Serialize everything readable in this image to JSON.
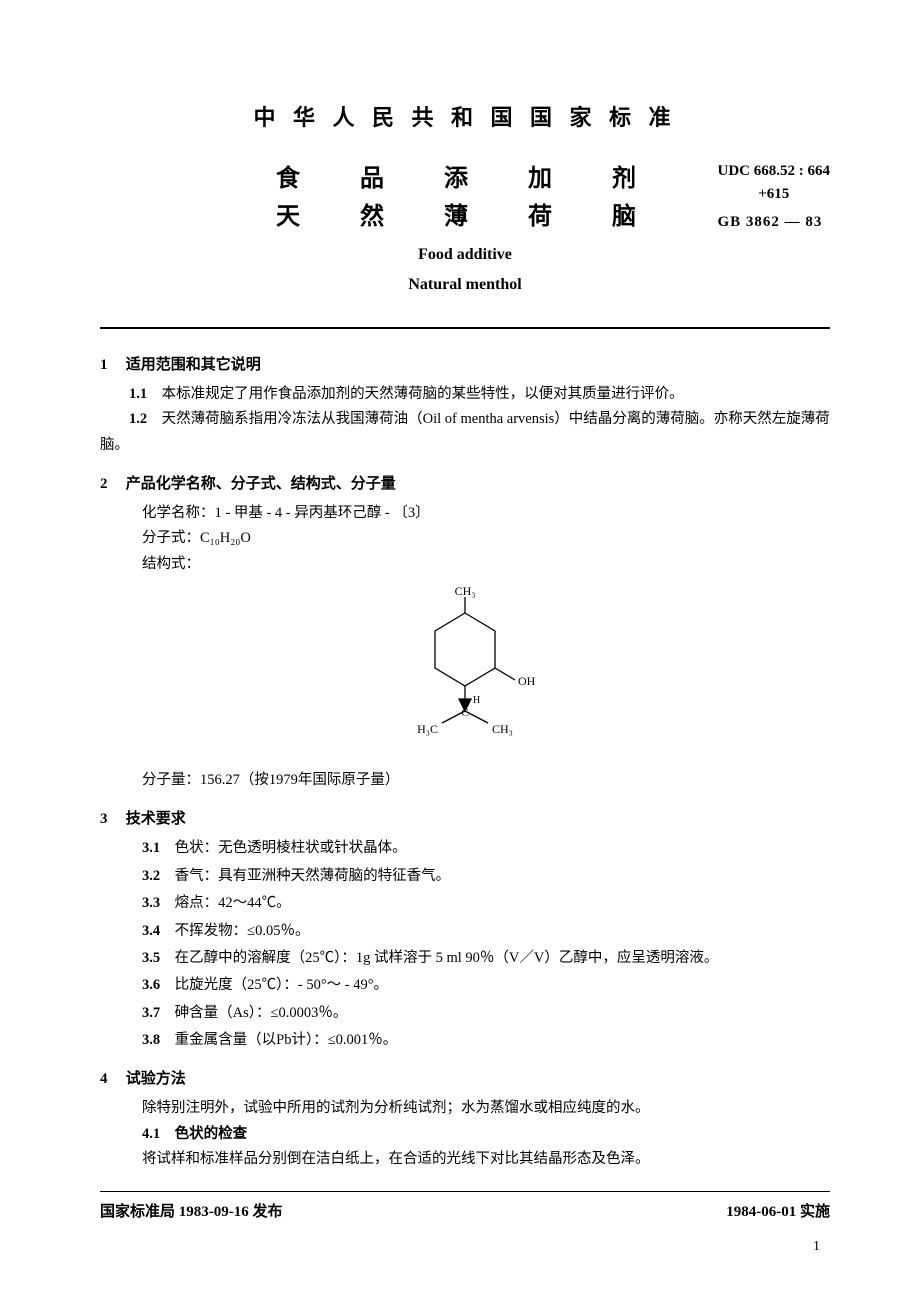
{
  "header": {
    "org": "中 华 人 民 共 和 国 国 家 标 准",
    "title_cn_1": "食　品　添　加　剂",
    "title_cn_2": "天　然　薄　荷　脑",
    "title_en_1": "Food additive",
    "title_en_2": "Natural menthol",
    "udc_line1": "UDC 668.52 : 664",
    "udc_line2": "+615",
    "gb": "GB 3862 — 83"
  },
  "s1": {
    "num": "1",
    "title": "适用范围和其它说明",
    "p1_num": "1.1",
    "p1": "本标准规定了用作食品添加剂的天然薄荷脑的某些特性，以便对其质量进行评价。",
    "p2_num": "1.2",
    "p2": "天然薄荷脑系指用冷冻法从我国薄荷油（Oil of mentha arvensis）中结晶分离的薄荷脑。亦称天然左旋薄荷脑。"
  },
  "s2": {
    "num": "2",
    "title": "产品化学名称、分子式、结构式、分子量",
    "chem_label": "化学名称：",
    "chem_name": "1 - 甲基 - 4 - 异丙基环己醇 - 〔3〕",
    "formula_label": "分子式：",
    "formula": "C₁₀H₂₀O",
    "struct_label": "结构式：",
    "mw_label": "分子量：",
    "mw": "156.27（按1979年国际原子量）",
    "svg": {
      "ch3_top": "CH₃",
      "oh": "OH",
      "c": "C",
      "h": "H",
      "h3c": "H₃C",
      "ch3_r": "CH₃"
    }
  },
  "s3": {
    "num": "3",
    "title": "技术要求",
    "items": [
      {
        "n": "3.1",
        "k": "色状：",
        "v": "无色透明棱柱状或针状晶体。"
      },
      {
        "n": "3.2",
        "k": "香气：",
        "v": "具有亚洲种天然薄荷脑的特征香气。"
      },
      {
        "n": "3.3",
        "k": "熔点：",
        "v": "42～44℃。"
      },
      {
        "n": "3.4",
        "k": "不挥发物：",
        "v": "≤0.05％。"
      },
      {
        "n": "3.5",
        "k": "在乙醇中的溶解度（25℃）：",
        "v": "1g 试样溶于 5 ml 90％（V／V）乙醇中，应呈透明溶液。"
      },
      {
        "n": "3.6",
        "k": "比旋光度（25℃）：",
        "v": "- 50°～ - 49°。"
      },
      {
        "n": "3.7",
        "k": "砷含量（As）：",
        "v": "≤0.0003％。"
      },
      {
        "n": "3.8",
        "k": "重金属含量（以Pb计）：",
        "v": "≤0.001％。"
      }
    ]
  },
  "s4": {
    "num": "4",
    "title": "试验方法",
    "intro": "除特别注明外，试验中所用的试剂为分析纯试剂；水为蒸馏水或相应纯度的水。",
    "sub_num": "4.1",
    "sub_title": "色状的检查",
    "sub_body": "将试样和标准样品分别倒在洁白纸上，在合适的光线下对比其结晶形态及色泽。"
  },
  "footer": {
    "left": "国家标准局 1983-09-16 发布",
    "right": "1984-06-01 实施",
    "pagenum": "1"
  }
}
